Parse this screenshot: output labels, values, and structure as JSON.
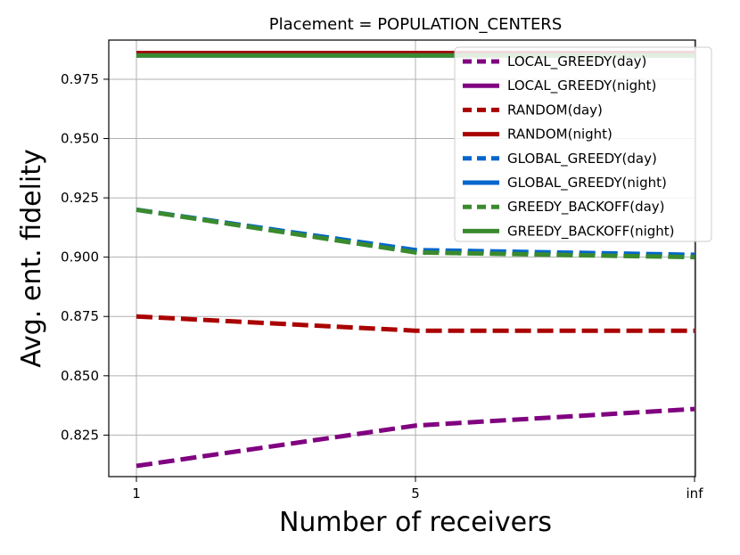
{
  "chart_data": {
    "type": "line",
    "title": "Placement = POPULATION_CENTERS",
    "xlabel": "Number of receivers",
    "ylabel": "Avg. ent. fidelity",
    "categories": [
      "1",
      "5",
      "inf"
    ],
    "ylim": [
      0.8075,
      0.9915
    ],
    "yticks": [
      "0.825",
      "0.850",
      "0.875",
      "0.900",
      "0.925",
      "0.950",
      "0.975"
    ],
    "grid": true,
    "legend_position": "top-right",
    "series": [
      {
        "name": "LOCAL_GREEDY(day)",
        "color": "#800080",
        "style": "dashed",
        "values": [
          0.812,
          0.829,
          0.836
        ]
      },
      {
        "name": "LOCAL_GREEDY(night)",
        "color": "#800080",
        "style": "solid",
        "values": [
          0.986,
          0.986,
          0.986
        ]
      },
      {
        "name": "RANDOM(day)",
        "color": "#aa0000",
        "style": "dashed",
        "values": [
          0.875,
          0.869,
          0.869
        ]
      },
      {
        "name": "RANDOM(night)",
        "color": "#aa0000",
        "style": "solid",
        "values": [
          0.986,
          0.986,
          0.986
        ]
      },
      {
        "name": "GLOBAL_GREEDY(day)",
        "color": "#0066cc",
        "style": "dashed",
        "values": [
          0.92,
          0.903,
          0.901
        ]
      },
      {
        "name": "GLOBAL_GREEDY(night)",
        "color": "#0066cc",
        "style": "solid",
        "values": [
          0.985,
          0.985,
          0.985
        ]
      },
      {
        "name": "GREEDY_BACKOFF(day)",
        "color": "#3a8a2e",
        "style": "dashed",
        "values": [
          0.92,
          0.902,
          0.9
        ]
      },
      {
        "name": "GREEDY_BACKOFF(night)",
        "color": "#3a8a2e",
        "style": "solid",
        "values": [
          0.985,
          0.985,
          0.985
        ]
      }
    ]
  }
}
